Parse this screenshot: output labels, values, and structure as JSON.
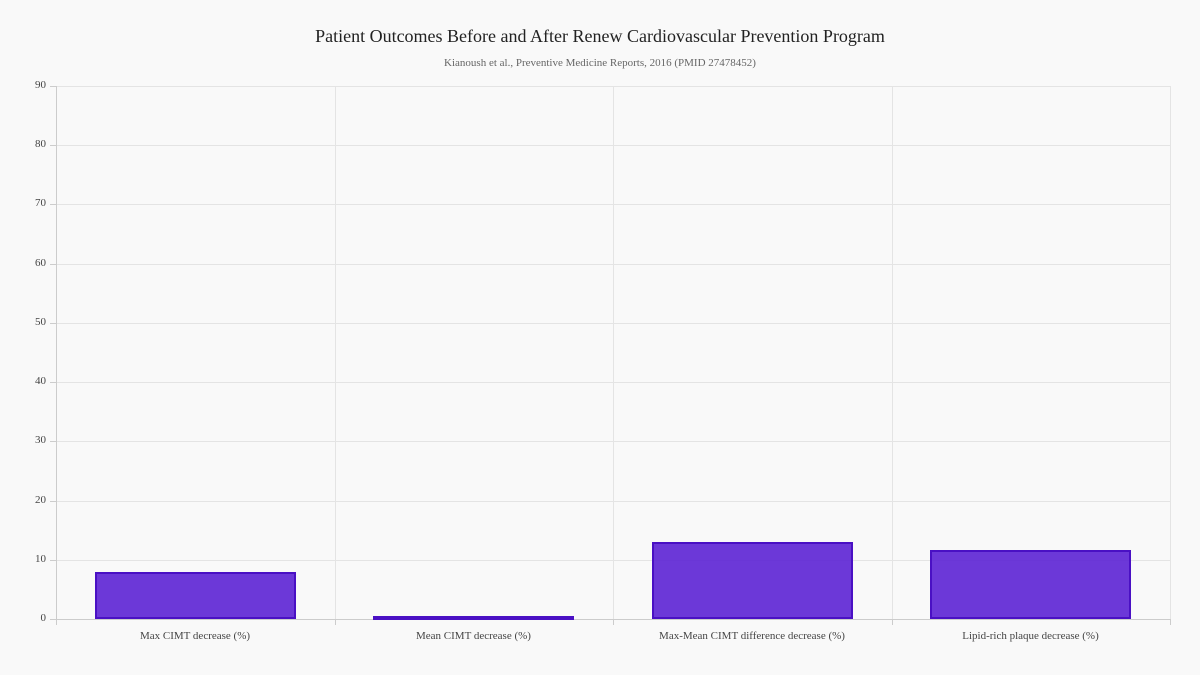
{
  "chart_data": {
    "type": "bar",
    "title": "Patient Outcomes Before and After Renew Cardiovascular Prevention Program",
    "subtitle": "Kianoush et al., Preventive Medicine Reports, 2016 (PMID 27478452)",
    "categories": [
      "Max CIMT decrease (%)",
      "Mean CIMT decrease (%)",
      "Max-Mean CIMT difference decrease (%)",
      "Lipid-rich plaque decrease (%)"
    ],
    "values": [
      7.9,
      0.4,
      13.0,
      11.7
    ],
    "xlabel": "",
    "ylabel": "",
    "ylim": [
      0,
      90
    ],
    "yticks": [
      0,
      10,
      20,
      30,
      40,
      50,
      60,
      70,
      80,
      90
    ],
    "grid": true,
    "bar_color": "#5c22d4",
    "bar_border": "#4a10c4"
  }
}
